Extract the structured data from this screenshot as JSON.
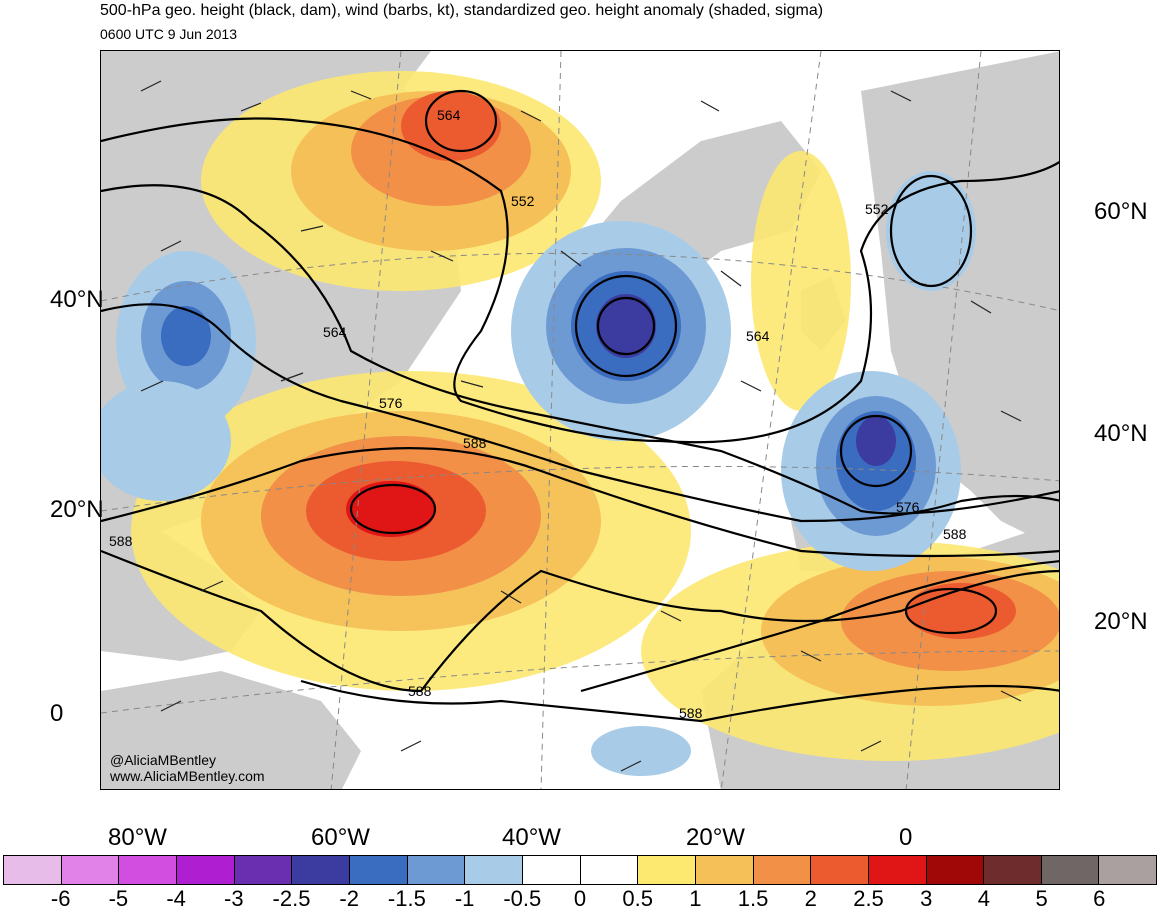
{
  "header": {
    "title": "500-hPa geo. height (black, dam), wind (barbs, kt), standardized geo. height anomaly (shaded, sigma)",
    "subtitle": "0600 UTC 9 Jun 2013"
  },
  "credits": {
    "handle": "@AliciaMBentley",
    "website": "www.AliciaMBentley.com"
  },
  "axes": {
    "lat_left": [
      "40°N",
      "20°N",
      "0"
    ],
    "lat_right": [
      "60°N",
      "40°N",
      "20°N"
    ],
    "lon_bottom": [
      "80°W",
      "60°W",
      "40°W",
      "20°W",
      "0"
    ]
  },
  "contour_labels": [
    "564",
    "552",
    "564",
    "576",
    "588",
    "588",
    "564",
    "552",
    "576",
    "588",
    "588",
    "588"
  ],
  "colorbar": {
    "ticks": [
      "-6",
      "-5",
      "-4",
      "-3",
      "-2.5",
      "-2",
      "-1.5",
      "-1",
      "-0.5",
      "0",
      "0.5",
      "1",
      "1.5",
      "2",
      "2.5",
      "3",
      "4",
      "5",
      "6"
    ],
    "colors": [
      "#e8bce8",
      "#e082e8",
      "#d24ee0",
      "#b01ed2",
      "#6a2eb0",
      "#3c3ca0",
      "#3a6cc0",
      "#6e9ad4",
      "#a8cce8",
      "#ffffff",
      "#ffffff",
      "#fde870",
      "#f6c058",
      "#f29048",
      "#ec5a30",
      "#e01616",
      "#a00808",
      "#6e2c2c",
      "#706666",
      "#aaa0a0"
    ]
  }
}
